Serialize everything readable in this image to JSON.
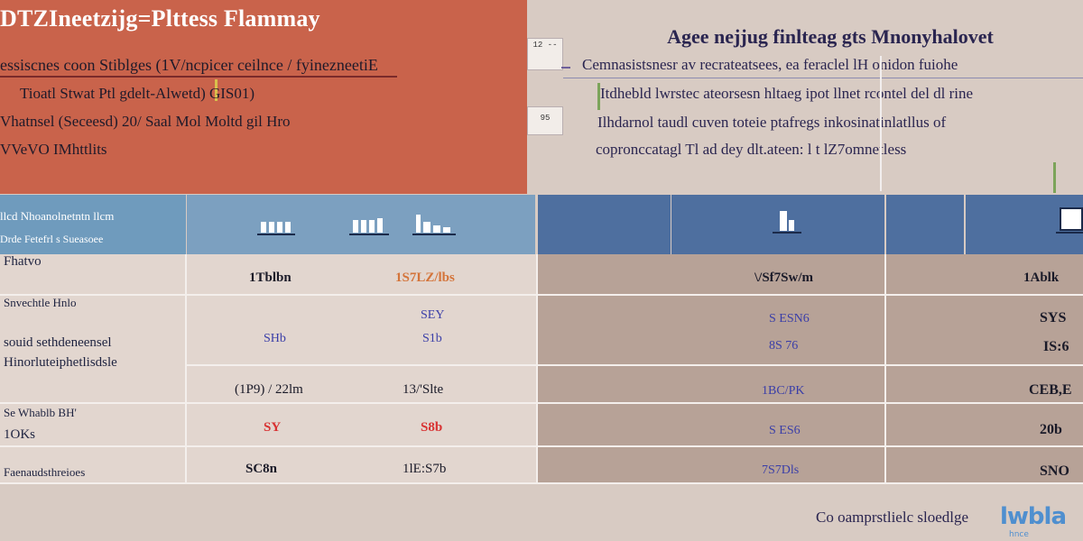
{
  "hero": {
    "title": "DTZIneetzijg=Plttess Flammay",
    "line1": "essiscnes coon Stiblges (1V/ncpicer ceilnce / fyinezneetiE",
    "line2": "Tioatl Stwat Ptl gdelt-Alwetd) GIS01)",
    "line3": "Vhatnsel (Seceesd) 20/ Saal Mol Moltd gil Hro",
    "line4": "VVeVO IMhttlits"
  },
  "chips": {
    "chip1": "12\n--",
    "chip2": "95"
  },
  "right": {
    "title": "Agee nejjug finlteag gts Mnonyhalovet",
    "line1": "Cemnasistsnesr av recrateatsees, ea feraclel lH onidon fuiohe",
    "line2": "Itdhebld lwrstec ateorsesn hltaeg ipot llnet rcontel del dl rine",
    "line3": "Ilhdarnol taudl cuven toteie ptafregs inkosinatinlatllus of",
    "line4": "copronccatagl Tl ad dey dlt.ateen: l t lZ7omnetless"
  },
  "table": {
    "header_a": "llcd Nhoanolnetntn llcm",
    "header_b": "Drde Fetefrl s Sueasoee",
    "rows": [
      {
        "label": "Fhatvo",
        "c1": "1Tblbn",
        "c2": "1S7LZ/lbs",
        "c3": "\\/Sf7Sw/m",
        "c4": "1Ablk"
      },
      {
        "label": "Snvechtle Hnlo",
        "c1": "",
        "c2": "SEY",
        "c3": "S ESN6",
        "c4": "SYS"
      },
      {
        "label": "souid sethdeneensel",
        "c1": "SHb",
        "c2": "S1b",
        "c3": "8S 76",
        "c4": "IS:6"
      },
      {
        "label": "Hinorluteiphetlisdsle",
        "c1": "",
        "c2": "",
        "c3": "",
        "c4": ""
      },
      {
        "label": "",
        "c1": "(1P9) / 22lm",
        "c2": "13/'Slte",
        "c3": "1BC/PK",
        "c4": "CEB,E"
      },
      {
        "label": "Se Whablb BH'",
        "c1": "SY",
        "c2": "S8b",
        "c3": "S ES6",
        "c4": "20b"
      },
      {
        "label": "1OKs",
        "c1": "",
        "c2": "",
        "c3": "",
        "c4": ""
      },
      {
        "label": "Faenaudsthreioes",
        "c1": "SC8n",
        "c2": "1lE:S7b",
        "c3": "7S7Dls",
        "c4": "SNO"
      }
    ]
  },
  "footer": {
    "text": "Co oamprstlielc sloedlge",
    "logo": "lwbla",
    "logo_sub": "hnce"
  },
  "colors": {
    "hero_bg": "#c9634b",
    "page_bg": "#d8cbc3",
    "header_blue": "#4e6f9f",
    "header_light": "#7ca0c0",
    "value_blue": "#3a3ea8",
    "value_red": "#d83232",
    "value_orange": "#d4743a"
  }
}
